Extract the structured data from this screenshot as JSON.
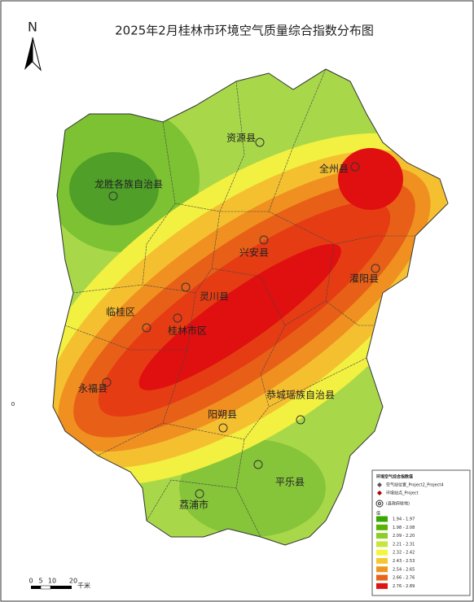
{
  "title": "2025年2月桂林市环境空气质量综合指数分布图",
  "north_arrow": "N",
  "edge_label": "0",
  "counties": [
    "资源县",
    "全州县",
    "龙胜各族自治县",
    "兴安县",
    "灌阳县",
    "灵川县",
    "临桂区",
    "桂林市区",
    "永福县",
    "恭城瑶族自治县",
    "阳朔县",
    "平乐县",
    "荔浦市"
  ],
  "legend": {
    "title": "环境空气综合指数值",
    "symbols": [
      "空气站位置_Project2_Project4",
      "环境站点_Project",
      "(县政府驻地)"
    ],
    "value_heading": "值",
    "classes": [
      {
        "label": "1.94 - 1.97",
        "color": "#38a800"
      },
      {
        "label": "1.98 - 2.08",
        "color": "#5ab300"
      },
      {
        "label": "2.09 - 2.20",
        "color": "#8ccd28"
      },
      {
        "label": "2.21 - 2.31",
        "color": "#c6e63c"
      },
      {
        "label": "2.32 - 2.42",
        "color": "#f5f53c"
      },
      {
        "label": "2.43 - 2.53",
        "color": "#f5c832"
      },
      {
        "label": "2.54 - 2.65",
        "color": "#f0961e"
      },
      {
        "label": "2.66 - 2.76",
        "color": "#e8641a"
      },
      {
        "label": "2.76 - 2.89",
        "color": "#e01414"
      }
    ]
  },
  "scale_bar": {
    "labels": [
      "0",
      "5",
      "10",
      "20"
    ],
    "unit": "千米"
  }
}
